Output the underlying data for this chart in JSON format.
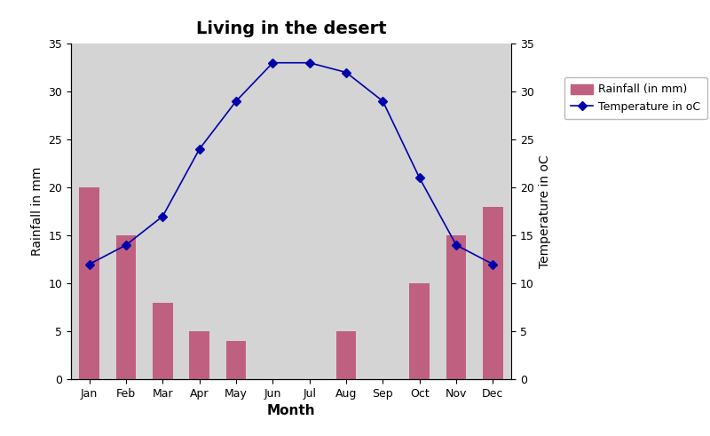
{
  "title": "Living in the desert",
  "xlabel": "Month",
  "ylabel_left": "Rainfall in mm",
  "ylabel_right": "Temperature in oC",
  "months": [
    "Jan",
    "Feb",
    "Mar",
    "Apr",
    "May",
    "Jun",
    "Jul",
    "Aug",
    "Sep",
    "Oct",
    "Nov",
    "Dec"
  ],
  "rainfall_mm": [
    20,
    15,
    8,
    5,
    4,
    0,
    0,
    5,
    0,
    10,
    15,
    18
  ],
  "temperature_c": [
    12,
    14,
    17,
    24,
    29,
    33,
    33,
    32,
    29,
    21,
    14,
    12
  ],
  "bar_color": "#c06080",
  "line_color": "#0000aa",
  "marker_style": "D",
  "marker_size": 5,
  "ylim_left": [
    0,
    35
  ],
  "ylim_right": [
    0,
    35
  ],
  "yticks_left": [
    0,
    5,
    10,
    15,
    20,
    25,
    30,
    35
  ],
  "yticks_right": [
    0,
    5,
    10,
    15,
    20,
    25,
    30,
    35
  ],
  "plot_bg_color": "#d4d4d4",
  "fig_bg_color": "#ffffff",
  "title_fontsize": 14,
  "title_fontweight": "bold",
  "legend_labels": [
    "Rainfall (in mm)",
    "Temperature in oC"
  ],
  "bar_width": 0.55
}
